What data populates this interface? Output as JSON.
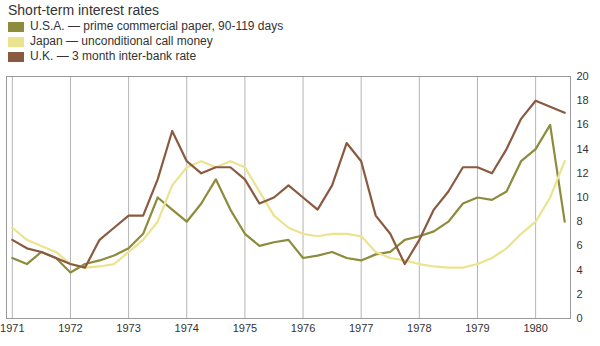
{
  "chart_data": {
    "type": "line",
    "title": "Short-term interest rates",
    "x": [
      1971,
      1971.25,
      1971.5,
      1971.75,
      1972,
      1972.25,
      1972.5,
      1972.75,
      1973,
      1973.25,
      1973.5,
      1973.75,
      1974,
      1974.25,
      1974.5,
      1974.75,
      1975,
      1975.25,
      1975.5,
      1975.75,
      1976,
      1976.25,
      1976.5,
      1976.75,
      1977,
      1977.25,
      1977.5,
      1977.75,
      1978,
      1978.25,
      1978.5,
      1978.75,
      1979,
      1979.25,
      1979.5,
      1979.75,
      1980,
      1980.25,
      1980.5
    ],
    "series": [
      {
        "name": "U.S.A. — prime commercial paper, 90-119 days",
        "color": "#8c8c3c",
        "values": [
          5.0,
          4.5,
          5.5,
          5.0,
          3.8,
          4.5,
          4.8,
          5.2,
          5.8,
          7.0,
          10.0,
          9.0,
          8.0,
          9.5,
          11.5,
          9.0,
          7.0,
          6.0,
          6.3,
          6.5,
          5.0,
          5.2,
          5.5,
          5.0,
          4.8,
          5.3,
          5.5,
          6.5,
          6.8,
          7.2,
          8.0,
          9.5,
          10.0,
          9.8,
          10.5,
          13.0,
          14.0,
          16.0,
          8.0
        ]
      },
      {
        "name": "Japan — unconditional call money",
        "color": "#ebe38e",
        "values": [
          7.5,
          6.5,
          6.0,
          5.5,
          4.5,
          4.2,
          4.3,
          4.5,
          5.5,
          6.5,
          8.0,
          11.0,
          12.5,
          13.0,
          12.5,
          13.0,
          12.5,
          10.5,
          8.5,
          7.5,
          7.0,
          6.8,
          7.0,
          7.0,
          6.8,
          5.5,
          5.0,
          4.8,
          4.5,
          4.3,
          4.2,
          4.2,
          4.5,
          5.0,
          5.8,
          7.0,
          8.0,
          10.0,
          13.0
        ]
      },
      {
        "name": "U.K. — 3 month inter-bank rate",
        "color": "#8a5a40",
        "values": [
          6.5,
          5.8,
          5.5,
          5.0,
          4.5,
          4.2,
          6.5,
          7.5,
          8.5,
          8.5,
          11.5,
          15.5,
          13.0,
          12.0,
          12.5,
          12.5,
          11.5,
          9.5,
          10.0,
          11.0,
          10.0,
          9.0,
          11.0,
          14.5,
          13.0,
          8.5,
          7.0,
          4.5,
          6.5,
          9.0,
          10.5,
          12.5,
          12.5,
          12.0,
          14.0,
          16.5,
          18.0,
          17.5,
          17.0
        ]
      }
    ],
    "xlim": [
      1970.9,
      1980.6
    ],
    "xticks": [
      1971,
      1972,
      1973,
      1974,
      1975,
      1976,
      1977,
      1978,
      1979,
      1980
    ],
    "ylim": [
      0,
      20
    ],
    "yticks": [
      0,
      2,
      4,
      6,
      8,
      10,
      12,
      14,
      16,
      18,
      20
    ],
    "grid": "x",
    "legend": "top-left"
  }
}
